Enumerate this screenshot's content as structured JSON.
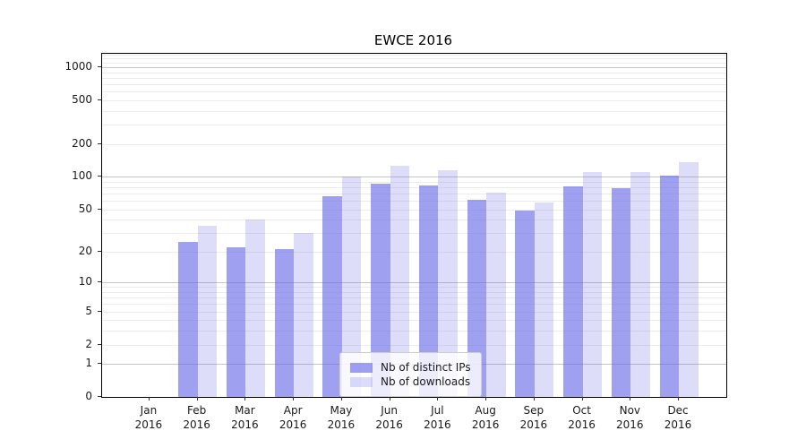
{
  "chart_data": {
    "type": "bar",
    "title": "EWCE 2016",
    "categories": [
      {
        "month": "Jan",
        "year": "2016"
      },
      {
        "month": "Feb",
        "year": "2016"
      },
      {
        "month": "Mar",
        "year": "2016"
      },
      {
        "month": "Apr",
        "year": "2016"
      },
      {
        "month": "May",
        "year": "2016"
      },
      {
        "month": "Jun",
        "year": "2016"
      },
      {
        "month": "Jul",
        "year": "2016"
      },
      {
        "month": "Aug",
        "year": "2016"
      },
      {
        "month": "Sep",
        "year": "2016"
      },
      {
        "month": "Oct",
        "year": "2016"
      },
      {
        "month": "Nov",
        "year": "2016"
      },
      {
        "month": "Dec",
        "year": "2016"
      }
    ],
    "series": [
      {
        "name": "Nb of distinct IPs",
        "color_hex": "#6666e8",
        "alpha": 0.62,
        "values": [
          0,
          25,
          22,
          21,
          66,
          87,
          83,
          61,
          49,
          82,
          78,
          103
        ]
      },
      {
        "name": "Nb of downloads",
        "color_hex": "#6666e8",
        "alpha": 0.22,
        "values": [
          0,
          35,
          40,
          30,
          101,
          126,
          114,
          72,
          58,
          110,
          110,
          136
        ]
      }
    ],
    "y_axis": {
      "ticks": [
        0,
        1,
        2,
        5,
        10,
        20,
        50,
        100,
        200,
        500,
        1000
      ],
      "scale": "log10(value+1)",
      "max": 1330
    },
    "x_axis": {
      "tick_count": 12
    },
    "grid": {
      "major_lines": [
        1,
        10,
        100,
        1000
      ],
      "minor_lines": "2-9 of each decade",
      "enabled": true
    },
    "legend": {
      "position": "bottom-center-inside"
    }
  },
  "colors": {
    "bar_base": "#6666e8",
    "grid_major": "#c6c6c6",
    "grid_minor": "#ececec",
    "spine": "#000000",
    "text": "#1a1a1a",
    "legend_border": "#cccccc"
  }
}
